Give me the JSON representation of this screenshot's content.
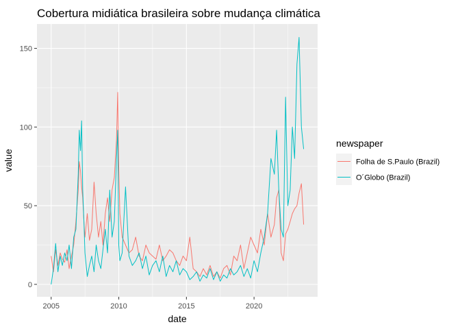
{
  "chart_data": {
    "type": "line",
    "title": "Cobertura midiática brasileira sobre mudança climática",
    "xlabel": "date",
    "ylabel": "value",
    "x_ticks": [
      2005,
      2010,
      2015,
      2020
    ],
    "y_ticks": [
      0,
      50,
      100,
      150
    ],
    "xlim": [
      2003.95,
      2024.7
    ],
    "ylim": [
      -7.9,
      165.5
    ],
    "grid": true,
    "legend": {
      "title": "newspaper",
      "position": "right"
    },
    "colors": {
      "panel": "#EBEBEB",
      "grid": "#FFFFFF"
    },
    "series": [
      {
        "name": "Folha de S.Paulo (Brazil)",
        "color": "#F8766D",
        "x": [
          2005.0,
          2005.17,
          2005.33,
          2005.5,
          2005.67,
          2005.83,
          2006.0,
          2006.17,
          2006.33,
          2006.5,
          2006.67,
          2006.83,
          2007.0,
          2007.08,
          2007.17,
          2007.25,
          2007.33,
          2007.42,
          2007.5,
          2007.67,
          2007.83,
          2008.0,
          2008.17,
          2008.33,
          2008.5,
          2008.67,
          2008.83,
          2009.0,
          2009.17,
          2009.33,
          2009.5,
          2009.67,
          2009.83,
          2009.92,
          2010.0,
          2010.08,
          2010.25,
          2010.5,
          2010.75,
          2011.0,
          2011.25,
          2011.5,
          2011.75,
          2012.0,
          2012.25,
          2012.5,
          2012.75,
          2013.0,
          2013.25,
          2013.5,
          2013.75,
          2014.0,
          2014.25,
          2014.5,
          2014.75,
          2015.0,
          2015.25,
          2015.5,
          2015.75,
          2016.0,
          2016.25,
          2016.5,
          2016.75,
          2017.0,
          2017.25,
          2017.5,
          2017.75,
          2018.0,
          2018.25,
          2018.5,
          2018.75,
          2019.0,
          2019.25,
          2019.5,
          2019.75,
          2020.0,
          2020.25,
          2020.5,
          2020.75,
          2021.0,
          2021.25,
          2021.5,
          2021.67,
          2021.83,
          2022.0,
          2022.17,
          2022.33,
          2022.5,
          2022.67,
          2022.83,
          2023.0,
          2023.17,
          2023.33,
          2023.5,
          2023.67
        ],
        "values": [
          18,
          8,
          22,
          12,
          20,
          16,
          14,
          22,
          10,
          18,
          25,
          40,
          60,
          78,
          72,
          62,
          55,
          40,
          30,
          45,
          28,
          35,
          65,
          45,
          30,
          40,
          25,
          45,
          55,
          40,
          60,
          68,
          92,
          122,
          75,
          45,
          30,
          25,
          20,
          22,
          30,
          18,
          15,
          25,
          20,
          18,
          16,
          25,
          15,
          18,
          22,
          20,
          15,
          12,
          18,
          15,
          30,
          10,
          8,
          5,
          10,
          6,
          12,
          5,
          8,
          4,
          10,
          12,
          6,
          18,
          15,
          25,
          10,
          20,
          30,
          25,
          20,
          35,
          25,
          45,
          30,
          38,
          55,
          60,
          20,
          15,
          32,
          35,
          40,
          45,
          48,
          50,
          58,
          64,
          38
        ]
      },
      {
        "name": "O´Globo (Brazil)",
        "color": "#00BFC4",
        "x": [
          2005.0,
          2005.17,
          2005.33,
          2005.5,
          2005.67,
          2005.83,
          2006.0,
          2006.17,
          2006.33,
          2006.5,
          2006.67,
          2006.83,
          2007.0,
          2007.08,
          2007.17,
          2007.25,
          2007.33,
          2007.42,
          2007.5,
          2007.67,
          2007.83,
          2008.0,
          2008.17,
          2008.33,
          2008.5,
          2008.67,
          2008.83,
          2009.0,
          2009.17,
          2009.33,
          2009.5,
          2009.67,
          2009.83,
          2009.92,
          2010.0,
          2010.08,
          2010.25,
          2010.5,
          2010.75,
          2011.0,
          2011.25,
          2011.5,
          2011.75,
          2012.0,
          2012.25,
          2012.5,
          2012.75,
          2013.0,
          2013.25,
          2013.5,
          2013.75,
          2014.0,
          2014.25,
          2014.5,
          2014.75,
          2015.0,
          2015.25,
          2015.5,
          2015.75,
          2016.0,
          2016.25,
          2016.5,
          2016.75,
          2017.0,
          2017.25,
          2017.5,
          2017.75,
          2018.0,
          2018.25,
          2018.5,
          2018.75,
          2019.0,
          2019.25,
          2019.5,
          2019.75,
          2020.0,
          2020.25,
          2020.5,
          2020.75,
          2021.0,
          2021.25,
          2021.5,
          2021.67,
          2021.83,
          2022.0,
          2022.17,
          2022.33,
          2022.5,
          2022.67,
          2022.83,
          2023.0,
          2023.17,
          2023.33,
          2023.5,
          2023.67
        ],
        "values": [
          0,
          10,
          26,
          8,
          18,
          12,
          20,
          15,
          25,
          10,
          30,
          35,
          70,
          98,
          85,
          104,
          60,
          40,
          20,
          5,
          12,
          18,
          8,
          25,
          15,
          10,
          22,
          35,
          20,
          60,
          30,
          40,
          80,
          98,
          25,
          15,
          20,
          62,
          18,
          12,
          15,
          20,
          10,
          18,
          6,
          12,
          15,
          8,
          18,
          5,
          12,
          8,
          15,
          6,
          10,
          8,
          3,
          5,
          8,
          2,
          6,
          4,
          10,
          3,
          8,
          2,
          6,
          4,
          10,
          6,
          8,
          12,
          5,
          10,
          4,
          15,
          8,
          20,
          30,
          45,
          80,
          70,
          98,
          60,
          35,
          30,
          119,
          50,
          60,
          100,
          80,
          140,
          157,
          100,
          86
        ]
      }
    ]
  }
}
